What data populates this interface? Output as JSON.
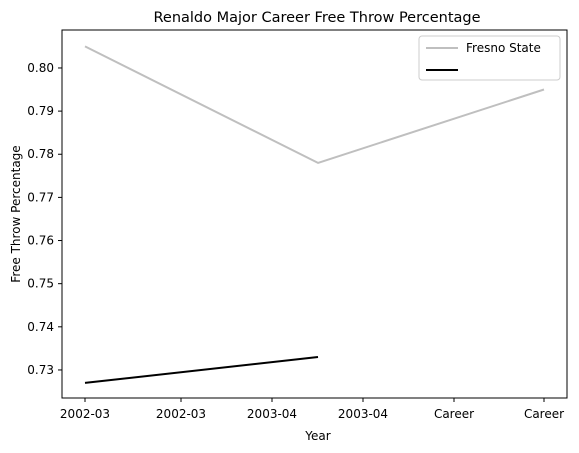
{
  "chart_data": {
    "type": "line",
    "title": "Renaldo Major Career Free Throw Percentage",
    "xlabel": "Year",
    "ylabel": "Free Throw Percentage",
    "x_tick_labels": [
      "2002-03",
      "2002-03",
      "2003-04",
      "2003-04",
      "Career",
      "Career"
    ],
    "y_ticks": [
      "0.73",
      "0.74",
      "0.75",
      "0.76",
      "0.77",
      "0.78",
      "0.79",
      "0.80"
    ],
    "ylim": [
      0.7235,
      0.8088
    ],
    "grid": false,
    "legend_placement": "top-right",
    "series": [
      {
        "name": "Fresno State",
        "color": "#bfbfbf",
        "x": [
          0,
          1,
          2
        ],
        "y": [
          0.805,
          0.778,
          0.795
        ]
      },
      {
        "name": "",
        "color": "#000000",
        "x": [
          0,
          1
        ],
        "y": [
          0.727,
          0.733
        ]
      }
    ]
  }
}
